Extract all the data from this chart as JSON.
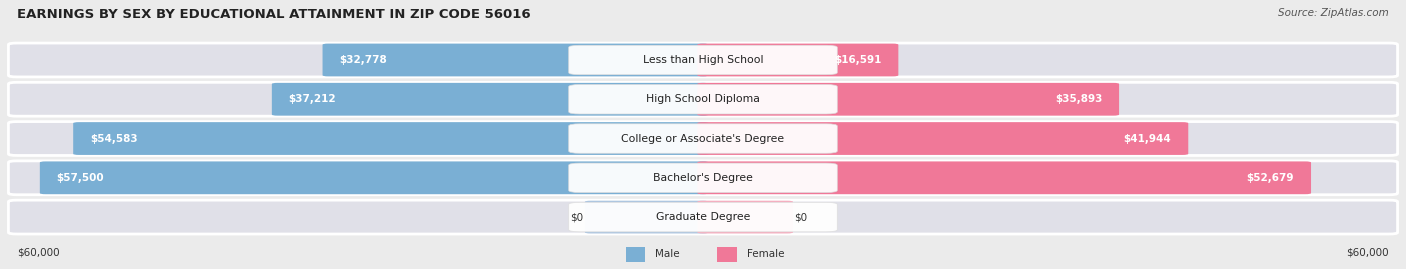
{
  "title": "EARNINGS BY SEX BY EDUCATIONAL ATTAINMENT IN ZIP CODE 56016",
  "source": "Source: ZipAtlas.com",
  "categories": [
    "Less than High School",
    "High School Diploma",
    "College or Associate's Degree",
    "Bachelor's Degree",
    "Graduate Degree"
  ],
  "male_values": [
    32778,
    37212,
    54583,
    57500,
    0
  ],
  "female_values": [
    16591,
    35893,
    41944,
    52679,
    0
  ],
  "male_color": "#7aafd4",
  "female_color": "#f07898",
  "male_color_faded": "#aec6e0",
  "female_color_faded": "#f4afc0",
  "male_label": "Male",
  "female_label": "Female",
  "max_value": 60000,
  "background_color": "#ebebeb",
  "bar_background": "#e0e0e8",
  "title_fontsize": 9.5,
  "source_fontsize": 7.5,
  "value_fontsize": 7.5,
  "cat_fontsize": 7.8
}
